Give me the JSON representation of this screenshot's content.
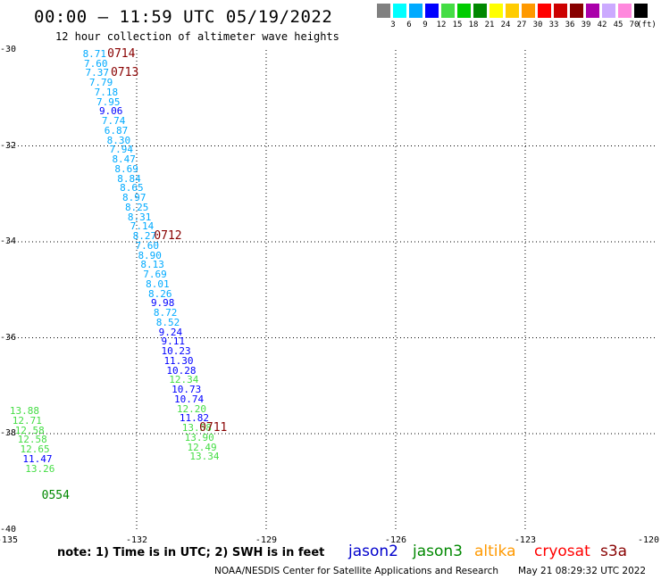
{
  "title": "00:00 – 11:59 UTC 05/19/2022",
  "subtitle": "12 hour collection of altimeter wave heights",
  "legend": {
    "colors": [
      "#808080",
      "#00ffff",
      "#00aaff",
      "#0000ff",
      "#44dd44",
      "#00cc00",
      "#008800",
      "#ffff00",
      "#ffcc00",
      "#ff9900",
      "#ff0000",
      "#cc0000",
      "#880000",
      "#aa00aa",
      "#ccaaff",
      "#ff88dd",
      "#000000"
    ],
    "labels": [
      "3",
      "6",
      "9",
      "12",
      "15",
      "18",
      "21",
      "24",
      "27",
      "30",
      "33",
      "36",
      "39",
      "42",
      "45",
      "70"
    ],
    "unit": "(ft)"
  },
  "axes": {
    "lat_labels": [
      "-30",
      "-32",
      "-34",
      "-36",
      "-38",
      "-40"
    ],
    "lon_labels": [
      "-135",
      "-132",
      "-129",
      "-126",
      "-123",
      "-120"
    ]
  },
  "observations": [
    {
      "v": "8.71",
      "lon": -133.25,
      "lat": -30.07,
      "c": "#00aaff"
    },
    {
      "v": "7.60",
      "lon": -133.22,
      "lat": -30.27,
      "c": "#00aaff"
    },
    {
      "v": "7.37",
      "lon": -133.19,
      "lat": -30.47,
      "c": "#00aaff"
    },
    {
      "v": "7.79",
      "lon": -133.1,
      "lat": -30.67,
      "c": "#00aaff"
    },
    {
      "v": "7.18",
      "lon": -132.98,
      "lat": -30.87,
      "c": "#00aaff"
    },
    {
      "v": "7.95",
      "lon": -132.93,
      "lat": -31.07,
      "c": "#00aaff"
    },
    {
      "v": "9.06",
      "lon": -132.87,
      "lat": -31.27,
      "c": "#0000ff"
    },
    {
      "v": "7.74",
      "lon": -132.81,
      "lat": -31.47,
      "c": "#00aaff"
    },
    {
      "v": "6.87",
      "lon": -132.75,
      "lat": -31.67,
      "c": "#00aaff"
    },
    {
      "v": "8.30",
      "lon": -132.69,
      "lat": -31.87,
      "c": "#00aaff"
    },
    {
      "v": "7.94",
      "lon": -132.63,
      "lat": -32.07,
      "c": "#00aaff"
    },
    {
      "v": "8.47",
      "lon": -132.57,
      "lat": -32.27,
      "c": "#00aaff"
    },
    {
      "v": "8.69",
      "lon": -132.51,
      "lat": -32.47,
      "c": "#00aaff"
    },
    {
      "v": "8.84",
      "lon": -132.45,
      "lat": -32.67,
      "c": "#00aaff"
    },
    {
      "v": "8.65",
      "lon": -132.39,
      "lat": -32.87,
      "c": "#00aaff"
    },
    {
      "v": "8.97",
      "lon": -132.33,
      "lat": -33.07,
      "c": "#00aaff"
    },
    {
      "v": "8.25",
      "lon": -132.27,
      "lat": -33.27,
      "c": "#00aaff"
    },
    {
      "v": "8.31",
      "lon": -132.21,
      "lat": -33.47,
      "c": "#00aaff"
    },
    {
      "v": "7.14",
      "lon": -132.15,
      "lat": -33.67,
      "c": "#00aaff"
    },
    {
      "v": "8.27",
      "lon": -132.09,
      "lat": -33.87,
      "c": "#00aaff"
    },
    {
      "v": "7.60",
      "lon": -132.03,
      "lat": -34.07,
      "c": "#00aaff"
    },
    {
      "v": "8.90",
      "lon": -131.97,
      "lat": -34.27,
      "c": "#00aaff"
    },
    {
      "v": "8.13",
      "lon": -131.91,
      "lat": -34.47,
      "c": "#00aaff"
    },
    {
      "v": "7.69",
      "lon": -131.85,
      "lat": -34.67,
      "c": "#00aaff"
    },
    {
      "v": "8.01",
      "lon": -131.79,
      "lat": -34.87,
      "c": "#00aaff"
    },
    {
      "v": "8.26",
      "lon": -131.73,
      "lat": -35.07,
      "c": "#00aaff"
    },
    {
      "v": "9.98",
      "lon": -131.67,
      "lat": -35.27,
      "c": "#0000ff"
    },
    {
      "v": "8.72",
      "lon": -131.61,
      "lat": -35.47,
      "c": "#00aaff"
    },
    {
      "v": "8.52",
      "lon": -131.55,
      "lat": -35.67,
      "c": "#00aaff"
    },
    {
      "v": "9.24",
      "lon": -131.49,
      "lat": -35.87,
      "c": "#0000ff"
    },
    {
      "v": "9.11",
      "lon": -131.43,
      "lat": -36.07,
      "c": "#0000ff"
    },
    {
      "v": "10.23",
      "lon": -131.43,
      "lat": -36.27,
      "c": "#0000ff"
    },
    {
      "v": "11.30",
      "lon": -131.37,
      "lat": -36.47,
      "c": "#0000ff"
    },
    {
      "v": "10.28",
      "lon": -131.31,
      "lat": -36.67,
      "c": "#0000ff"
    },
    {
      "v": "12.34",
      "lon": -131.25,
      "lat": -36.87,
      "c": "#44dd44"
    },
    {
      "v": "10.73",
      "lon": -131.19,
      "lat": -37.07,
      "c": "#0000ff"
    },
    {
      "v": "10.74",
      "lon": -131.13,
      "lat": -37.27,
      "c": "#0000ff"
    },
    {
      "v": "12.20",
      "lon": -131.07,
      "lat": -37.47,
      "c": "#44dd44"
    },
    {
      "v": "11.82",
      "lon": -131.01,
      "lat": -37.67,
      "c": "#0000ff"
    },
    {
      "v": "13.58",
      "lon": -130.95,
      "lat": -37.87,
      "c": "#44dd44"
    },
    {
      "v": "13.90",
      "lon": -130.89,
      "lat": -38.07,
      "c": "#44dd44"
    },
    {
      "v": "12.49",
      "lon": -130.83,
      "lat": -38.27,
      "c": "#44dd44"
    },
    {
      "v": "13.34",
      "lon": -130.77,
      "lat": -38.47,
      "c": "#44dd44"
    },
    {
      "v": "13.88",
      "lon": -134.94,
      "lat": -37.52,
      "c": "#44dd44"
    },
    {
      "v": "12.71",
      "lon": -134.88,
      "lat": -37.72,
      "c": "#44dd44"
    },
    {
      "v": "12.58",
      "lon": -134.82,
      "lat": -37.92,
      "c": "#44dd44"
    },
    {
      "v": "12.58",
      "lon": -134.76,
      "lat": -38.12,
      "c": "#44dd44"
    },
    {
      "v": "12.65",
      "lon": -134.7,
      "lat": -38.32,
      "c": "#44dd44"
    },
    {
      "v": "11.47",
      "lon": -134.64,
      "lat": -38.52,
      "c": "#0000ff"
    },
    {
      "v": "13.26",
      "lon": -134.58,
      "lat": -38.72,
      "c": "#44dd44"
    }
  ],
  "passes": [
    {
      "t": "0714",
      "lon": -132.68,
      "lat": -30.07,
      "c": "#880000"
    },
    {
      "t": "0713",
      "lon": -132.6,
      "lat": -30.47,
      "c": "#880000"
    },
    {
      "t": "0712",
      "lon": -131.6,
      "lat": -33.87,
      "c": "#880000"
    },
    {
      "t": "0711",
      "lon": -130.55,
      "lat": -37.87,
      "c": "#880000"
    },
    {
      "t": "0554",
      "lon": -134.2,
      "lat": -39.29,
      "c": "#008800"
    }
  ],
  "footer": {
    "note": "note:  1) Time is in UTC;  2) SWH is in feet",
    "satellites": [
      {
        "name": "jason2",
        "color": "#0000cc"
      },
      {
        "name": "jason3",
        "color": "#008800"
      },
      {
        "name": "altika",
        "color": "#ff9900"
      },
      {
        "name": "cryosat",
        "color": "#ff0000"
      },
      {
        "name": "s3a",
        "color": "#880000"
      }
    ],
    "credit": "NOAA/NESDIS Center for Satellite Applications and Research",
    "stamp": "May 21 08:29:32 UTC 2022"
  }
}
